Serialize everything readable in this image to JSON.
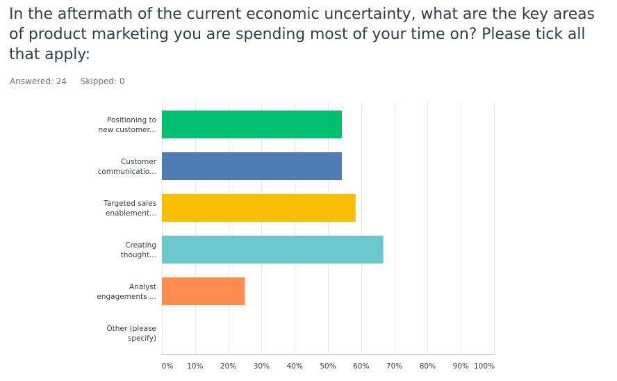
{
  "question": {
    "title": "In the aftermath of the current economic uncertainty, what are the key areas of product marketing you are spending most of your time on? Please tick all that apply:",
    "answered": "Answered: 24",
    "skipped": "Skipped: 0"
  },
  "chart_data": {
    "type": "bar",
    "orientation": "horizontal",
    "title": "",
    "xlabel": "",
    "ylabel": "",
    "xlim": [
      0,
      100
    ],
    "grid": true,
    "categories": [
      [
        "Positioning to",
        "new customer..."
      ],
      [
        "Customer",
        "communicatio..."
      ],
      [
        "Targeted sales",
        "enablement..."
      ],
      [
        "Creating",
        "thought..."
      ],
      [
        "Analyst",
        "engagements ..."
      ],
      [
        "Other (please",
        "specify)"
      ]
    ],
    "values": [
      54.17,
      54.17,
      58.33,
      66.67,
      25.0,
      0
    ],
    "colors": [
      "#00bf6f",
      "#507cb6",
      "#f9be00",
      "#6bc8cd",
      "#ff8b4f",
      "#7d5e90"
    ],
    "ticks": [
      "0%",
      "10%",
      "20%",
      "30%",
      "40%",
      "50%",
      "60%",
      "70%",
      "80%",
      "90%",
      "100%"
    ],
    "gridline_color": "#e6e6e6",
    "axis_color": "#b8bdc1"
  }
}
